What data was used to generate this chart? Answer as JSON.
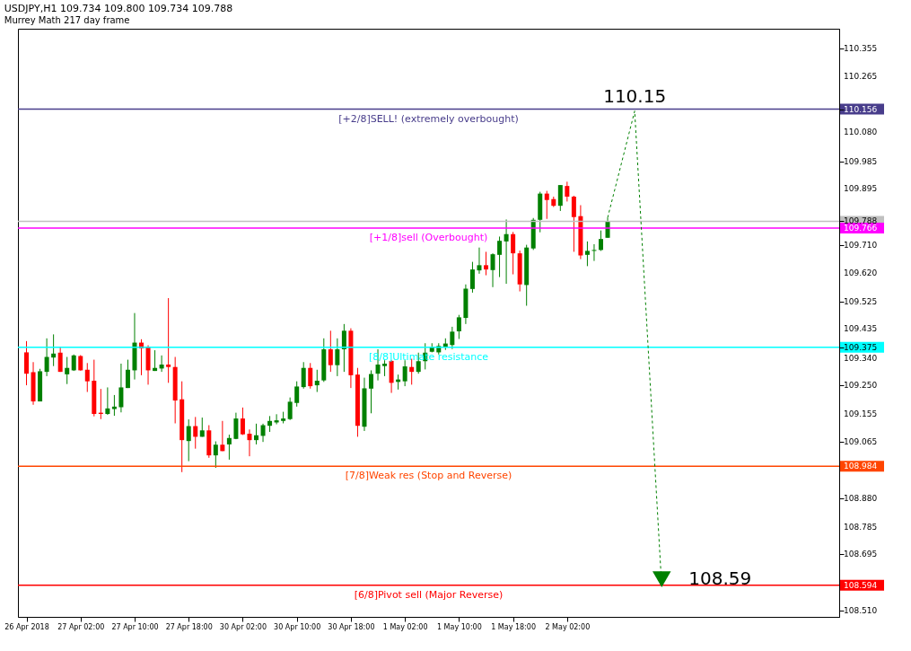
{
  "chart_data": {
    "type": "candlestick",
    "title": "USDJPY,H1  109.734 109.800 109.734 109.788",
    "subtitle": "Murrey Math 217 day frame",
    "categories": [
      "26 Apr 2018",
      null,
      null,
      null,
      null,
      null,
      null,
      null,
      "27 Apr 02:00",
      null,
      null,
      null,
      null,
      null,
      null,
      null,
      "27 Apr 10:00",
      null,
      null,
      null,
      null,
      null,
      null,
      null,
      "27 Apr 18:00",
      null,
      null,
      null,
      null,
      null,
      null,
      null,
      "30 Apr 02:00",
      null,
      null,
      null,
      null,
      null,
      null,
      null,
      "30 Apr 10:00",
      null,
      null,
      null,
      null,
      null,
      null,
      null,
      "30 Apr 18:00",
      null,
      null,
      null,
      null,
      null,
      null,
      null,
      "1 May 02:00",
      null,
      null,
      null,
      null,
      null,
      null,
      null,
      "1 May 10:00",
      null,
      null,
      null,
      null,
      null,
      null,
      null,
      "1 May 18:00",
      null,
      null,
      null,
      null,
      null,
      null,
      null,
      "2 May 02:00",
      null,
      null,
      null,
      null,
      null,
      null,
      null,
      null,
      null,
      null,
      null,
      null,
      null,
      null,
      null,
      null,
      null,
      null,
      null,
      null,
      null,
      null,
      null,
      null,
      null,
      null,
      null,
      null,
      null,
      null,
      null,
      null,
      null,
      null,
      null,
      null,
      null,
      null,
      null
    ],
    "ohlc": [
      [
        109.358,
        109.395,
        109.25,
        109.288
      ],
      [
        109.293,
        109.326,
        109.186,
        109.197
      ],
      [
        109.197,
        109.304,
        109.197,
        109.296
      ],
      [
        109.294,
        109.404,
        109.28,
        109.343
      ],
      [
        109.341,
        109.417,
        109.313,
        109.354
      ],
      [
        109.357,
        109.374,
        109.294,
        109.294
      ],
      [
        109.286,
        109.343,
        109.254,
        109.307
      ],
      [
        109.299,
        109.351,
        109.297,
        109.348
      ],
      [
        109.346,
        109.349,
        109.298,
        109.299
      ],
      [
        109.301,
        109.323,
        109.228,
        109.263
      ],
      [
        109.265,
        109.334,
        109.148,
        109.156
      ],
      [
        109.16,
        109.238,
        109.139,
        109.156
      ],
      [
        109.156,
        109.243,
        109.153,
        109.174
      ],
      [
        109.172,
        109.218,
        109.15,
        109.18
      ],
      [
        109.178,
        109.321,
        109.161,
        109.243
      ],
      [
        109.241,
        109.334,
        109.241,
        109.301
      ],
      [
        109.299,
        109.487,
        109.269,
        109.39
      ],
      [
        109.39,
        109.401,
        109.283,
        109.371
      ],
      [
        109.374,
        109.381,
        109.252,
        109.299
      ],
      [
        109.297,
        109.365,
        109.297,
        109.307
      ],
      [
        109.305,
        109.348,
        109.294,
        109.318
      ],
      [
        109.318,
        109.536,
        109.258,
        109.31
      ],
      [
        109.31,
        109.343,
        109.125,
        109.2
      ],
      [
        109.204,
        109.263,
        108.965,
        109.07
      ],
      [
        109.067,
        109.138,
        109.001,
        109.116
      ],
      [
        109.116,
        109.146,
        109.042,
        109.081
      ],
      [
        109.081,
        109.144,
        109.081,
        109.102
      ],
      [
        109.102,
        109.119,
        109.012,
        109.02
      ],
      [
        109.02,
        109.066,
        108.979,
        109.055
      ],
      [
        109.055,
        109.133,
        109.034,
        109.034
      ],
      [
        109.056,
        109.088,
        109.006,
        109.077
      ],
      [
        109.074,
        109.16,
        109.073,
        109.141
      ],
      [
        109.141,
        109.177,
        109.087,
        109.089
      ],
      [
        109.091,
        109.105,
        109.017,
        109.07
      ],
      [
        109.07,
        109.124,
        109.056,
        109.086
      ],
      [
        109.084,
        109.124,
        109.064,
        109.119
      ],
      [
        109.117,
        109.149,
        109.097,
        109.133
      ],
      [
        109.128,
        109.155,
        109.122,
        109.135
      ],
      [
        109.133,
        109.163,
        109.125,
        109.141
      ],
      [
        109.139,
        109.21,
        109.136,
        109.196
      ],
      [
        109.192,
        109.263,
        109.18,
        109.246
      ],
      [
        109.244,
        109.326,
        109.239,
        109.307
      ],
      [
        109.307,
        109.323,
        109.239,
        109.247
      ],
      [
        109.25,
        109.301,
        109.228,
        109.265
      ],
      [
        109.266,
        109.404,
        109.261,
        109.368
      ],
      [
        109.368,
        109.429,
        109.294,
        109.316
      ],
      [
        109.316,
        109.404,
        109.28,
        109.368
      ],
      [
        109.368,
        109.451,
        109.294,
        109.429
      ],
      [
        109.429,
        109.437,
        109.241,
        109.283
      ],
      [
        109.285,
        109.307,
        109.081,
        109.117
      ],
      [
        109.114,
        109.275,
        109.1,
        109.24
      ],
      [
        109.239,
        109.299,
        109.158,
        109.287
      ],
      [
        109.288,
        109.368,
        109.266,
        109.318
      ],
      [
        109.313,
        109.332,
        109.28,
        109.321
      ],
      [
        109.33,
        109.333,
        109.225,
        109.258
      ],
      [
        109.261,
        109.285,
        109.236,
        109.269
      ],
      [
        109.263,
        109.332,
        109.247,
        109.312
      ],
      [
        109.31,
        109.337,
        109.252,
        109.294
      ],
      [
        109.294,
        109.357,
        109.288,
        109.329
      ],
      [
        109.329,
        109.388,
        109.302,
        109.357
      ],
      [
        109.36,
        109.388,
        109.358,
        109.374
      ],
      [
        109.358,
        109.388,
        109.351,
        109.379
      ],
      [
        109.377,
        109.404,
        109.366,
        109.387
      ],
      [
        109.382,
        109.442,
        109.369,
        109.426
      ],
      [
        109.427,
        109.481,
        109.402,
        109.473
      ],
      [
        109.471,
        109.581,
        109.451,
        109.567
      ],
      [
        109.566,
        109.655,
        109.554,
        109.63
      ],
      [
        109.627,
        109.702,
        109.616,
        109.644
      ],
      [
        109.644,
        109.688,
        109.611,
        109.63
      ],
      [
        109.628,
        109.683,
        109.572,
        109.68
      ],
      [
        109.678,
        109.738,
        109.605,
        109.724
      ],
      [
        109.722,
        109.794,
        109.583,
        109.746
      ],
      [
        109.746,
        109.753,
        109.614,
        109.683
      ],
      [
        109.683,
        109.692,
        109.558,
        109.581
      ],
      [
        109.579,
        109.711,
        109.511,
        109.702
      ],
      [
        109.699,
        109.799,
        109.694,
        109.793
      ],
      [
        109.793,
        109.885,
        109.752,
        109.879
      ],
      [
        109.879,
        109.888,
        109.796,
        109.858
      ],
      [
        109.861,
        109.869,
        109.835,
        109.839
      ],
      [
        109.839,
        109.907,
        109.822,
        109.907
      ],
      [
        109.904,
        109.918,
        109.853,
        109.869
      ],
      [
        109.869,
        109.872,
        109.688,
        109.802
      ],
      [
        109.805,
        109.841,
        109.664,
        109.676
      ],
      [
        109.678,
        109.722,
        109.641,
        109.691
      ],
      [
        109.691,
        109.713,
        109.658,
        109.694
      ],
      [
        109.694,
        109.758,
        109.691,
        109.73
      ],
      [
        109.734,
        109.8,
        109.734,
        109.788
      ],
      null,
      null,
      null,
      null,
      null,
      null,
      null,
      null,
      null,
      null,
      null,
      null,
      null,
      null,
      null,
      null,
      null,
      null,
      null,
      null,
      null,
      null,
      null,
      null,
      null,
      null,
      null,
      null,
      null,
      null,
      null,
      null,
      null
    ],
    "ref_lines": [
      {
        "axis": "y",
        "value": 110.156,
        "label": "[+2/8]SELL! (extremely overbought)",
        "color": "#483d8b"
      },
      {
        "axis": "y",
        "value": 109.788,
        "label": null,
        "color": "#c0c0c0"
      },
      {
        "axis": "y",
        "value": 109.766,
        "label": "[+1/8]sell (Overbought)",
        "color": "#ff00ff"
      },
      {
        "axis": "y",
        "value": 109.375,
        "label": "[8/8]Ultimate resistance",
        "color": "#00ffff"
      },
      {
        "axis": "y",
        "value": 108.984,
        "label": "[7/8]Weak res (Stop and Reverse)",
        "color": "#ff4500"
      },
      {
        "axis": "y",
        "value": 108.594,
        "label": "[6/8]Pivot sell (Major Reverse)",
        "color": "#ff0000"
      }
    ],
    "annotations": [
      {
        "text": "110.15",
        "y": 110.15
      },
      {
        "text": "108.59",
        "y": 108.59
      }
    ],
    "ylim": [
      108.49,
      110.42
    ],
    "yticks": [
      110.355,
      110.265,
      {
        "value": 110.156,
        "label": "110.156"
      },
      {
        "value": 110.08,
        "label": "110.080"
      },
      109.985,
      109.895,
      {
        "value": 109.788,
        "label": "109.788"
      },
      {
        "value": 109.766,
        "label": "109.766"
      },
      {
        "value": 109.71,
        "label": "109.710"
      },
      {
        "value": 109.62,
        "label": "109.620"
      },
      109.525,
      109.435,
      {
        "value": 109.375,
        "label": "109.375"
      },
      {
        "value": 109.34,
        "label": "109.340"
      },
      {
        "value": 109.25,
        "label": "109.250"
      },
      109.155,
      109.065,
      {
        "value": 108.984,
        "label": "108.984"
      },
      {
        "value": 108.88,
        "label": "108.880"
      },
      108.785,
      108.695,
      {
        "value": 108.594,
        "label": "108.594"
      },
      {
        "value": 108.51,
        "label": "108.510"
      }
    ],
    "grid": false
  }
}
